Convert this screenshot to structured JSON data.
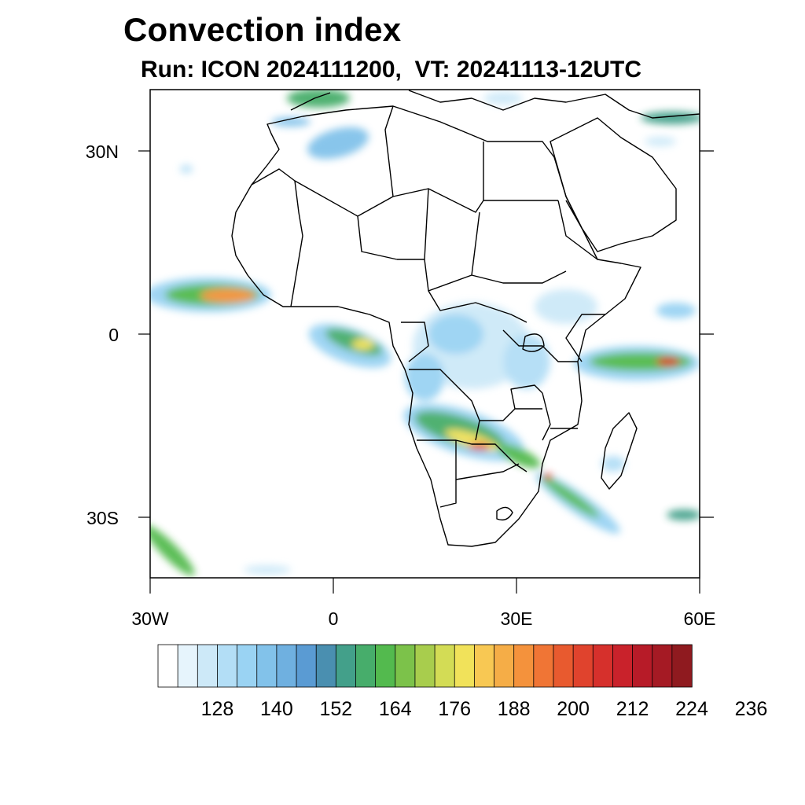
{
  "title": "Convection index",
  "subtitle": {
    "run": "Run: ICON 2024111200,",
    "vt": "VT: 20241113-12UTC"
  },
  "map": {
    "lon_range": [
      -30,
      60
    ],
    "lat_range": [
      -40,
      40
    ],
    "lat_labels": [
      "30N",
      "0",
      "30S"
    ],
    "lon_labels": [
      "30W",
      "0",
      "30E",
      "60E"
    ]
  },
  "colorbar": {
    "labels": [
      "128",
      "140",
      "152",
      "164",
      "176",
      "188",
      "200",
      "212",
      "224",
      "236"
    ],
    "colors": [
      "#ffffff",
      "#e6f4fc",
      "#cde9f8",
      "#b3def6",
      "#9ad3f3",
      "#82c2ea",
      "#6fb0e0",
      "#5a9bd3",
      "#4a8fb0",
      "#43a08a",
      "#47ad6b",
      "#53ba4e",
      "#7cc24a",
      "#a8cd4d",
      "#d3dc55",
      "#f1e25a",
      "#f8c853",
      "#f5ad47",
      "#f4923c",
      "#f07535",
      "#e85a2f",
      "#e0432d",
      "#d6302c",
      "#c9222b",
      "#b71b28",
      "#a51a24",
      "#8f1a1f"
    ]
  },
  "colors": {
    "land_outline": "#000000",
    "frame": "#000000"
  }
}
